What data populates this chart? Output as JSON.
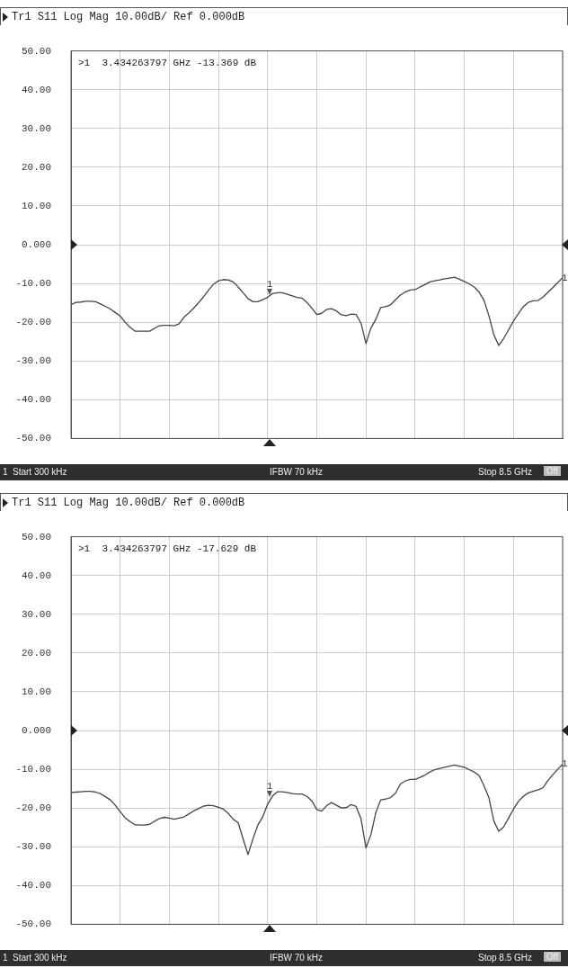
{
  "chart_data": [
    {
      "type": "line",
      "title": "Tr1 S11 Log Mag 10.00dB/ Ref 0.000dB",
      "categories": [
        null,
        null,
        null,
        null,
        null,
        null,
        null,
        null,
        null,
        null,
        null,
        null,
        null,
        null,
        null,
        null,
        null,
        null,
        null,
        null,
        null,
        null,
        null,
        null,
        null,
        null,
        null,
        null,
        null,
        null,
        null,
        null,
        null,
        null,
        null,
        null,
        null,
        null,
        null,
        null,
        null,
        null,
        null,
        null,
        null,
        null,
        null,
        null,
        null,
        null,
        null,
        null,
        null,
        null,
        null,
        null,
        null,
        null,
        null,
        null,
        null,
        null,
        null,
        null,
        null,
        null,
        null,
        null,
        null,
        null,
        null,
        null,
        null,
        null,
        null,
        null,
        null,
        null,
        null,
        null,
        null,
        null,
        null,
        null,
        null,
        null,
        null,
        null,
        null,
        null,
        null,
        null,
        null,
        null,
        null,
        null,
        null,
        null,
        null,
        null,
        null
      ],
      "ylim": [
        -50,
        50
      ],
      "yticks": [
        {
          "value": 50,
          "label": "50.00"
        },
        {
          "value": 40,
          "label": "40.00"
        },
        {
          "value": 30,
          "label": "30.00"
        },
        {
          "value": 20,
          "label": "20.00"
        },
        {
          "value": 10,
          "label": "10.00"
        },
        {
          "value": 0,
          "label": "0.000"
        },
        {
          "value": -10,
          "label": "-10.00"
        },
        {
          "value": -20,
          "label": "-20.00"
        },
        {
          "value": -30,
          "label": "-30.00"
        },
        {
          "value": -40,
          "label": "-40.00"
        },
        {
          "value": -50,
          "label": "-50.00"
        }
      ],
      "tick_labels": "y",
      "grid": true,
      "marker": "none",
      "line_style": "solid",
      "series": [
        {
          "color": "#444444",
          "values": [
            -15.5,
            -14.9,
            -14.8,
            -14.6,
            -14.6,
            -14.7,
            -15.3,
            -15.9,
            -16.6,
            -17.5,
            -18.4,
            -20.0,
            -21.3,
            -22.3,
            -22.3,
            -22.3,
            -22.3,
            -21.6,
            -20.9,
            -20.8,
            -20.8,
            -20.9,
            -20.4,
            -18.7,
            -17.6,
            -16.3,
            -14.9,
            -13.4,
            -11.7,
            -10.2,
            -9.3,
            -9.0,
            -9.1,
            -9.6,
            -10.9,
            -12.4,
            -13.9,
            -14.7,
            -14.7,
            -14.2,
            -13.6,
            -12.6,
            -12.4,
            -12.4,
            -12.8,
            -13.2,
            -13.6,
            -13.8,
            -14.9,
            -16.4,
            -18.0,
            -17.7,
            -16.7,
            -16.5,
            -17.1,
            -18.1,
            -18.3,
            -17.9,
            -18.0,
            -20.3,
            -25.5,
            -21.5,
            -19.3,
            -16.2,
            -16.0,
            -15.5,
            -14.2,
            -13.0,
            -12.2,
            -11.7,
            -11.6,
            -10.9,
            -10.3,
            -9.6,
            -9.3,
            -9.1,
            -8.8,
            -8.6,
            -8.4,
            -8.9,
            -9.5,
            -10.1,
            -10.9,
            -12.2,
            -14.3,
            -18.3,
            -23.2,
            -26.0,
            -24.2,
            -22.0,
            -19.7,
            -17.8,
            -16.0,
            -14.9,
            -14.5,
            -14.4,
            -13.5,
            -12.3,
            -11.1,
            -9.8,
            -8.5
          ]
        }
      ],
      "annotations": [
        ">1  3.434263797 GHz -13.369 dB",
        "1",
        "Start 300 kHz",
        "IFBW 70 kHz",
        "Stop 8.5 GHz",
        "Off",
        {
          "text": "1",
          "y": -13.369
        },
        {
          "text": "1",
          "y": -8.5
        }
      ]
    },
    {
      "type": "line",
      "title": "Tr1 S11 Log Mag 10.00dB/ Ref 0.000dB",
      "categories": [
        null,
        null,
        null,
        null,
        null,
        null,
        null,
        null,
        null,
        null,
        null,
        null,
        null,
        null,
        null,
        null,
        null,
        null,
        null,
        null,
        null,
        null,
        null,
        null,
        null,
        null,
        null,
        null,
        null,
        null,
        null,
        null,
        null,
        null,
        null,
        null,
        null,
        null,
        null,
        null,
        null,
        null,
        null,
        null,
        null,
        null,
        null,
        null,
        null,
        null,
        null,
        null,
        null,
        null,
        null,
        null,
        null,
        null,
        null,
        null,
        null,
        null,
        null,
        null,
        null,
        null,
        null,
        null,
        null,
        null,
        null,
        null,
        null,
        null,
        null,
        null,
        null,
        null,
        null,
        null,
        null,
        null,
        null,
        null,
        null,
        null,
        null,
        null,
        null,
        null,
        null,
        null,
        null,
        null,
        null,
        null,
        null,
        null,
        null,
        null,
        null
      ],
      "ylim": [
        -50,
        50
      ],
      "yticks": [
        {
          "value": 50,
          "label": "50.00"
        },
        {
          "value": 40,
          "label": "40.00"
        },
        {
          "value": 30,
          "label": "30.00"
        },
        {
          "value": 20,
          "label": "20.00"
        },
        {
          "value": 10,
          "label": "10.00"
        },
        {
          "value": 0,
          "label": "0.000"
        },
        {
          "value": -10,
          "label": "-10.00"
        },
        {
          "value": -20,
          "label": "-20.00"
        },
        {
          "value": -30,
          "label": "-30.00"
        },
        {
          "value": -40,
          "label": "-40.00"
        },
        {
          "value": -50,
          "label": "-50.00"
        }
      ],
      "tick_labels": "y",
      "grid": true,
      "marker": "none",
      "line_style": "solid",
      "series": [
        {
          "color": "#444444",
          "values": [
            -16.0,
            -15.9,
            -15.8,
            -15.7,
            -15.7,
            -15.9,
            -16.3,
            -17.1,
            -17.9,
            -19.3,
            -20.9,
            -22.5,
            -23.5,
            -24.3,
            -24.4,
            -24.4,
            -24.2,
            -23.4,
            -22.7,
            -22.4,
            -22.6,
            -22.9,
            -22.6,
            -22.3,
            -21.5,
            -20.7,
            -20.1,
            -19.5,
            -19.3,
            -19.4,
            -19.8,
            -20.3,
            -21.4,
            -22.9,
            -23.8,
            -27.9,
            -32.0,
            -28.0,
            -24.4,
            -22.3,
            -19.0,
            -16.9,
            -15.8,
            -15.8,
            -16.0,
            -16.3,
            -16.4,
            -16.4,
            -17.0,
            -18.2,
            -20.4,
            -20.8,
            -19.4,
            -18.6,
            -19.3,
            -20.0,
            -19.9,
            -19.1,
            -19.6,
            -22.8,
            -30.3,
            -26.9,
            -21.2,
            -17.9,
            -17.7,
            -17.3,
            -16.2,
            -13.8,
            -13.0,
            -12.6,
            -12.6,
            -12.1,
            -11.5,
            -10.7,
            -10.1,
            -9.8,
            -9.5,
            -9.2,
            -8.9,
            -9.2,
            -9.5,
            -10.1,
            -10.7,
            -11.6,
            -14.2,
            -17.3,
            -23.3,
            -26.0,
            -24.9,
            -22.6,
            -20.3,
            -18.3,
            -17.0,
            -16.1,
            -15.7,
            -15.3,
            -14.8,
            -12.9,
            -11.4,
            -10.0,
            -8.7
          ]
        }
      ],
      "annotations": [
        ">1  3.434263797 GHz -17.629 dB",
        "1",
        "Start 300 kHz",
        "IFBW 70 kHz",
        "Stop 8.5 GHz",
        "Off",
        {
          "text": "1",
          "y": -17.629
        },
        {
          "text": "1",
          "y": -8.7
        }
      ]
    }
  ]
}
